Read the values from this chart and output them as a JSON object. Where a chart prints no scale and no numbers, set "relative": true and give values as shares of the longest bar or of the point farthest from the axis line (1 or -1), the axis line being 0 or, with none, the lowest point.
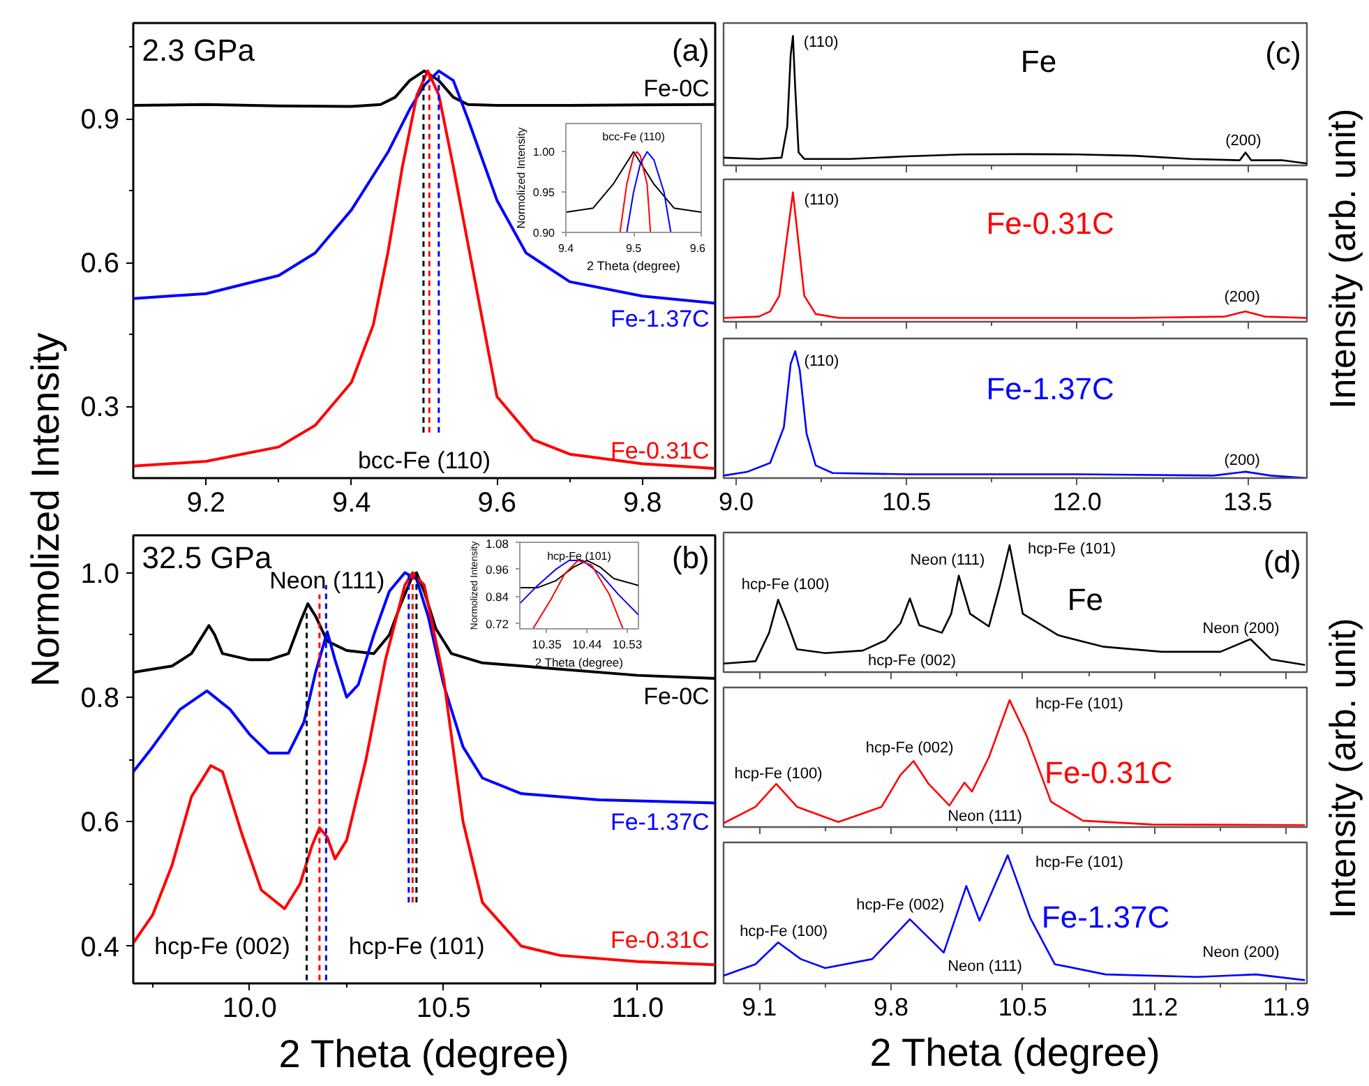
{
  "chart_data": [
    {
      "type": "line",
      "title": "(a)",
      "subtitle": "2.3 GPa",
      "ylabel": "Normolized Intensity",
      "xlim": [
        9.1,
        9.9
      ],
      "ylim": [
        0.15,
        1.1
      ],
      "xticks": [
        9.2,
        9.4,
        9.6,
        9.8,
        {
          "value": 9.3,
          "label": null
        },
        {
          "value": 9.7,
          "label": null
        }
      ],
      "yticks": [
        0.3,
        0.6,
        0.9,
        {
          "value": 0.45,
          "label": null
        },
        {
          "value": 0.75,
          "label": null
        },
        {
          "value": 1.05,
          "label": null
        }
      ],
      "annotations": [
        "bcc-Fe (110)"
      ],
      "series": [
        {
          "name": "Fe-0C",
          "color": "#000000",
          "x": [
            9.1,
            9.2,
            9.3,
            9.4,
            9.44,
            9.46,
            9.48,
            9.5,
            9.52,
            9.54,
            9.56,
            9.6,
            9.7,
            9.8,
            9.9
          ],
          "values": [
            0.928,
            0.93,
            0.927,
            0.926,
            0.93,
            0.945,
            0.98,
            1.0,
            0.98,
            0.945,
            0.93,
            0.928,
            0.928,
            0.929,
            0.93
          ]
        },
        {
          "name": "Fe-1.37C",
          "color": "#0000ff",
          "x": [
            9.1,
            9.2,
            9.3,
            9.35,
            9.4,
            9.45,
            9.48,
            9.5,
            9.52,
            9.54,
            9.56,
            9.6,
            9.64,
            9.7,
            9.8,
            9.9
          ],
          "values": [
            0.525,
            0.535,
            0.573,
            0.62,
            0.71,
            0.83,
            0.92,
            0.97,
            1.0,
            0.98,
            0.9,
            0.73,
            0.62,
            0.56,
            0.53,
            0.515
          ]
        },
        {
          "name": "Fe-0.31C",
          "color": "#ff0000",
          "x": [
            9.1,
            9.2,
            9.3,
            9.35,
            9.4,
            9.43,
            9.45,
            9.47,
            9.49,
            9.505,
            9.52,
            9.54,
            9.56,
            9.6,
            9.65,
            9.7,
            9.8,
            9.9
          ],
          "values": [
            0.175,
            0.185,
            0.215,
            0.26,
            0.35,
            0.47,
            0.62,
            0.8,
            0.95,
            1.0,
            0.95,
            0.8,
            0.64,
            0.32,
            0.23,
            0.2,
            0.18,
            0.17
          ]
        },
        {
          "color": "#ff0000",
          "line_style": "dashed",
          "x": [
            9.507,
            9.507
          ],
          "values": [
            0.245,
            1.0
          ]
        },
        {
          "color": "#0000ff",
          "line_style": "dashed",
          "x": [
            9.52,
            9.52
          ],
          "values": [
            0.245,
            1.0
          ]
        },
        {
          "color": "#000000",
          "line_style": "dashed",
          "x": [
            9.499,
            9.499
          ],
          "values": [
            0.245,
            1.0
          ]
        }
      ]
    },
    {
      "type": "line",
      "title": "bcc-Fe (110)",
      "xlabel": "2 Theta (degree)",
      "ylabel": "Normolized Intensity",
      "xlim": [
        9.4,
        9.6
      ],
      "ylim": [
        0.9,
        1.035
      ],
      "xticks": [
        9.4,
        9.5,
        9.6
      ],
      "yticks": [
        {
          "value": 0.9,
          "label": "0.90"
        },
        {
          "value": 0.95,
          "label": "0.95"
        },
        {
          "value": 1.0,
          "label": "1.00"
        }
      ],
      "series": [
        {
          "color": "#000000",
          "x": [
            9.4,
            9.44,
            9.47,
            9.5,
            9.53,
            9.56,
            9.6
          ],
          "values": [
            0.925,
            0.93,
            0.96,
            1.0,
            0.96,
            0.93,
            0.925
          ]
        },
        {
          "color": "#ff0000",
          "x": [
            9.48,
            9.49,
            9.5,
            9.505,
            9.51,
            9.52,
            9.525
          ],
          "values": [
            0.9,
            0.96,
            0.995,
            1.0,
            0.995,
            0.96,
            0.9
          ]
        },
        {
          "color": "#0000ff",
          "x": [
            9.49,
            9.5,
            9.51,
            9.52,
            9.53,
            9.545,
            9.555
          ],
          "values": [
            0.9,
            0.95,
            0.985,
            1.0,
            0.99,
            0.95,
            0.9
          ]
        }
      ]
    },
    {
      "type": "line",
      "title": "(b)",
      "subtitle": "32.5 GPa",
      "xlabel": "2 Theta (degree)",
      "xlim": [
        9.7,
        11.2
      ],
      "ylim": [
        0.34,
        1.06
      ],
      "xticks": [
        {
          "value": 10.0,
          "label": "10.0"
        },
        10.5,
        {
          "value": 11.0,
          "label": "11.0"
        },
        {
          "value": 9.75,
          "label": null
        },
        {
          "value": 10.25,
          "label": null
        },
        {
          "value": 10.75,
          "label": null
        }
      ],
      "yticks": [
        0.4,
        0.6,
        0.8,
        {
          "value": 1.0,
          "label": "1.0"
        },
        {
          "value": 0.5,
          "label": null
        },
        {
          "value": 0.7,
          "label": null
        },
        {
          "value": 0.9,
          "label": null
        }
      ],
      "annotations": [
        "Neon (111)",
        "hcp-Fe (002)",
        "hcp-Fe (101)"
      ],
      "series": [
        {
          "name": "Fe-0C",
          "color": "#000000",
          "x": [
            9.7,
            9.75,
            9.8,
            9.85,
            9.88,
            9.895,
            9.91,
            9.93,
            10.0,
            10.05,
            10.1,
            10.13,
            10.15,
            10.17,
            10.2,
            10.25,
            10.32,
            10.36,
            10.39,
            10.42,
            10.43,
            10.45,
            10.48,
            10.52,
            10.6,
            10.8,
            11.0,
            11.2
          ],
          "values": [
            0.84,
            0.845,
            0.85,
            0.87,
            0.9,
            0.915,
            0.9,
            0.87,
            0.86,
            0.86,
            0.87,
            0.92,
            0.95,
            0.93,
            0.89,
            0.875,
            0.87,
            0.9,
            0.95,
            0.995,
            1.0,
            0.97,
            0.91,
            0.87,
            0.855,
            0.845,
            0.835,
            0.83
          ]
        },
        {
          "name": "Fe-1.37C",
          "color": "#0000ff",
          "x": [
            9.7,
            9.75,
            9.82,
            9.89,
            9.95,
            10.0,
            10.05,
            10.1,
            10.14,
            10.17,
            10.2,
            10.22,
            10.25,
            10.28,
            10.32,
            10.36,
            10.4,
            10.43,
            10.46,
            10.5,
            10.55,
            10.6,
            10.7,
            10.9,
            11.2
          ],
          "values": [
            0.68,
            0.72,
            0.78,
            0.81,
            0.78,
            0.74,
            0.71,
            0.71,
            0.76,
            0.84,
            0.905,
            0.86,
            0.8,
            0.82,
            0.9,
            0.97,
            1.0,
            0.99,
            0.93,
            0.82,
            0.72,
            0.67,
            0.645,
            0.635,
            0.63
          ]
        },
        {
          "name": "Fe-0.31C",
          "color": "#ff0000",
          "x": [
            9.7,
            9.75,
            9.8,
            9.85,
            9.9,
            9.93,
            9.98,
            10.03,
            10.09,
            10.13,
            10.16,
            10.18,
            10.2,
            10.22,
            10.25,
            10.3,
            10.35,
            10.4,
            10.42,
            10.45,
            10.5,
            10.55,
            10.6,
            10.7,
            10.8,
            11.0,
            11.2
          ],
          "values": [
            0.405,
            0.45,
            0.53,
            0.64,
            0.69,
            0.68,
            0.58,
            0.49,
            0.46,
            0.5,
            0.56,
            0.59,
            0.575,
            0.54,
            0.57,
            0.7,
            0.86,
            0.98,
            1.0,
            0.98,
            0.83,
            0.6,
            0.47,
            0.4,
            0.385,
            0.375,
            0.37
          ]
        },
        {
          "color": "#000000",
          "line_style": "dashed",
          "x": [
            10.147,
            10.147
          ],
          "values": [
            0.345,
            0.94
          ]
        },
        {
          "color": "#ff0000",
          "line_style": "dashed",
          "x": [
            10.18,
            10.18
          ],
          "values": [
            0.345,
            0.965
          ]
        },
        {
          "color": "#0000ff",
          "line_style": "dashed",
          "x": [
            10.197,
            10.197
          ],
          "values": [
            0.345,
            0.98
          ]
        },
        {
          "color": "#0000ff",
          "line_style": "dashed",
          "x": [
            10.41,
            10.41
          ],
          "values": [
            0.47,
            1.0
          ]
        },
        {
          "color": "#ff0000",
          "line_style": "dashed",
          "x": [
            10.42,
            10.42
          ],
          "values": [
            0.47,
            1.0
          ]
        },
        {
          "color": "#000000",
          "line_style": "dashed",
          "x": [
            10.43,
            10.43
          ],
          "values": [
            0.47,
            1.0
          ]
        }
      ]
    },
    {
      "type": "line",
      "title": "hcp-Fe (101)",
      "xlabel": "2 Theta (degree)",
      "ylabel": "Normolized Intensity",
      "xlim": [
        10.29,
        10.555
      ],
      "ylim": [
        0.698,
        1.08
      ],
      "xticks": [
        10.35,
        10.44,
        10.53
      ],
      "yticks": [
        0.72,
        0.84,
        0.96,
        1.08
      ],
      "series": [
        {
          "color": "#000000",
          "x": [
            10.29,
            10.33,
            10.37,
            10.41,
            10.44,
            10.47,
            10.5,
            10.555
          ],
          "values": [
            0.88,
            0.88,
            0.91,
            0.97,
            1.0,
            0.97,
            0.92,
            0.89
          ]
        },
        {
          "color": "#0000ff",
          "x": [
            10.29,
            10.33,
            10.37,
            10.4,
            10.43,
            10.47,
            10.51,
            10.555
          ],
          "values": [
            0.81,
            0.89,
            0.96,
            1.0,
            1.0,
            0.94,
            0.85,
            0.76
          ]
        },
        {
          "color": "#ff0000",
          "x": [
            10.32,
            10.36,
            10.39,
            10.42,
            10.45,
            10.49,
            10.52
          ],
          "values": [
            0.7,
            0.83,
            0.94,
            1.0,
            0.98,
            0.85,
            0.7
          ]
        }
      ]
    },
    {
      "type": "line",
      "relative": true,
      "title": "(c)",
      "tick_labels": false,
      "xlim": [
        8.89,
        14.02
      ],
      "xticks": [
        9.0,
        10.5,
        12.0,
        13.5,
        {
          "value": 9.75,
          "label": null
        },
        {
          "value": 11.25,
          "label": null
        },
        {
          "value": 12.75,
          "label": null
        }
      ],
      "annotations": [
        "(110)",
        "(200)"
      ],
      "series": [
        {
          "name": "Fe",
          "color": "#000000",
          "x": [
            8.89,
            9.2,
            9.4,
            9.45,
            9.48,
            9.5,
            9.52,
            9.55,
            9.6,
            10.0,
            10.5,
            11.0,
            11.5,
            12.0,
            12.5,
            13.0,
            13.43,
            13.48,
            13.53,
            13.8,
            14.02
          ],
          "values": [
            0.06,
            0.05,
            0.06,
            0.3,
            0.85,
            1.0,
            0.6,
            0.1,
            0.05,
            0.05,
            0.07,
            0.085,
            0.087,
            0.085,
            0.075,
            0.05,
            0.04,
            0.1,
            0.04,
            0.04,
            0.015
          ]
        }
      ]
    },
    {
      "type": "line",
      "relative": true,
      "tick_labels": false,
      "ylabel": "Intensity (arb. unit)",
      "xlim": [
        8.89,
        14.02
      ],
      "xticks": [
        9.0,
        10.5,
        12.0,
        13.5,
        {
          "value": 9.75,
          "label": null
        },
        {
          "value": 11.25,
          "label": null
        },
        {
          "value": 12.75,
          "label": null
        }
      ],
      "annotations": [
        "(110)",
        "(200)"
      ],
      "series": [
        {
          "name": "Fe-0.31C",
          "color": "#ff0000",
          "x": [
            8.89,
            9.2,
            9.3,
            9.38,
            9.44,
            9.5,
            9.55,
            9.6,
            9.7,
            9.9,
            11.0,
            12.5,
            13.3,
            13.48,
            13.65,
            14.02
          ],
          "values": [
            0.03,
            0.04,
            0.08,
            0.2,
            0.6,
            1.0,
            0.6,
            0.2,
            0.06,
            0.03,
            0.03,
            0.03,
            0.04,
            0.08,
            0.04,
            0.03
          ]
        }
      ]
    },
    {
      "type": "line",
      "relative": true,
      "tick_labels": "x",
      "xlim": [
        8.89,
        14.02
      ],
      "xticks": [
        {
          "value": 9.0,
          "label": "9.0"
        },
        10.5,
        {
          "value": 12.0,
          "label": "12.0"
        },
        13.5,
        {
          "value": 9.75,
          "label": null
        },
        {
          "value": 11.25,
          "label": null
        },
        {
          "value": 12.75,
          "label": null
        }
      ],
      "annotations": [
        "(110)",
        "(200)"
      ],
      "series": [
        {
          "name": "Fe-1.37C",
          "color": "#0000ff",
          "x": [
            8.89,
            9.1,
            9.3,
            9.42,
            9.48,
            9.52,
            9.56,
            9.62,
            9.7,
            9.85,
            10.5,
            12.0,
            13.2,
            13.48,
            13.7,
            14.02
          ],
          "values": [
            0.02,
            0.05,
            0.12,
            0.4,
            0.9,
            1.0,
            0.85,
            0.35,
            0.1,
            0.04,
            0.03,
            0.03,
            0.02,
            0.05,
            0.02,
            0.0
          ]
        }
      ]
    },
    {
      "type": "line",
      "relative": true,
      "title": "(d)",
      "tick_labels": false,
      "xlim": [
        8.91,
        12.01
      ],
      "xticks": [
        9.1,
        9.8,
        10.5,
        11.2,
        11.9,
        {
          "value": 9.45,
          "label": null
        },
        {
          "value": 10.15,
          "label": null
        },
        {
          "value": 10.85,
          "label": null
        },
        {
          "value": 11.55,
          "label": null
        }
      ],
      "annotations": [
        "hcp-Fe (100)",
        "hcp-Fe (002)",
        "Neon (111)",
        "hcp-Fe (101)",
        "Neon (200)"
      ],
      "series": [
        {
          "name": "Fe",
          "color": "#000000",
          "x": [
            8.91,
            9.08,
            9.152,
            9.2,
            9.25,
            9.3,
            9.45,
            9.65,
            9.77,
            9.85,
            9.9,
            9.95,
            10.07,
            10.12,
            10.16,
            10.22,
            10.32,
            10.38,
            10.43,
            10.5,
            10.69,
            10.93,
            11.24,
            11.55,
            11.71,
            11.82,
            12.0
          ],
          "values": [
            0.067,
            0.086,
            0.31,
            0.57,
            0.385,
            0.18,
            0.15,
            0.17,
            0.25,
            0.385,
            0.58,
            0.37,
            0.31,
            0.46,
            0.76,
            0.46,
            0.36,
            0.69,
            1.0,
            0.46,
            0.29,
            0.2,
            0.16,
            0.16,
            0.26,
            0.1,
            0.056
          ]
        }
      ]
    },
    {
      "type": "line",
      "relative": true,
      "tick_labels": false,
      "ylabel": "Intensity (arb. unit)",
      "xlim": [
        8.91,
        12.01
      ],
      "xticks": [
        9.1,
        9.8,
        10.5,
        11.2,
        11.9,
        {
          "value": 9.45,
          "label": null
        },
        {
          "value": 10.15,
          "label": null
        },
        {
          "value": 10.85,
          "label": null
        },
        {
          "value": 11.55,
          "label": null
        }
      ],
      "annotations": [
        "hcp-Fe (100)",
        "hcp-Fe (002)",
        "Neon (111)",
        "hcp-Fe (101)"
      ],
      "series": [
        {
          "name": "Fe-0.31C",
          "color": "#ff0000",
          "x": [
            8.91,
            9.08,
            9.19,
            9.3,
            9.52,
            9.75,
            9.85,
            9.92,
            10.0,
            10.11,
            10.19,
            10.23,
            10.32,
            10.43,
            10.52,
            10.65,
            10.82,
            11.19,
            12.0
          ],
          "values": [
            0.03,
            0.16,
            0.34,
            0.16,
            0.04,
            0.16,
            0.41,
            0.52,
            0.34,
            0.17,
            0.35,
            0.28,
            0.55,
            1.0,
            0.72,
            0.2,
            0.05,
            0.02,
            0.015
          ]
        }
      ]
    },
    {
      "type": "line",
      "relative": true,
      "tick_labels": "x",
      "xlabel": "2 Theta (degree)",
      "xlim": [
        8.91,
        12.01
      ],
      "xticks": [
        9.1,
        9.8,
        10.5,
        11.2,
        11.9,
        {
          "value": 9.45,
          "label": null
        },
        {
          "value": 10.15,
          "label": null
        },
        {
          "value": 10.85,
          "label": null
        },
        {
          "value": 11.55,
          "label": null
        }
      ],
      "annotations": [
        "hcp-Fe (100)",
        "hcp-Fe (002)",
        "Neon (111)",
        "hcp-Fe (101)",
        "Neon (200)"
      ],
      "series": [
        {
          "name": "Fe-1.37C",
          "color": "#0000ff",
          "x": [
            8.91,
            9.08,
            9.2,
            9.32,
            9.45,
            9.7,
            9.9,
            10.08,
            10.2,
            10.27,
            10.42,
            10.54,
            10.67,
            10.94,
            11.43,
            11.74,
            12.0
          ],
          "values": [
            0.06,
            0.15,
            0.32,
            0.19,
            0.12,
            0.19,
            0.5,
            0.24,
            0.76,
            0.49,
            1.0,
            0.51,
            0.15,
            0.07,
            0.05,
            0.07,
            0.025
          ]
        }
      ]
    }
  ]
}
